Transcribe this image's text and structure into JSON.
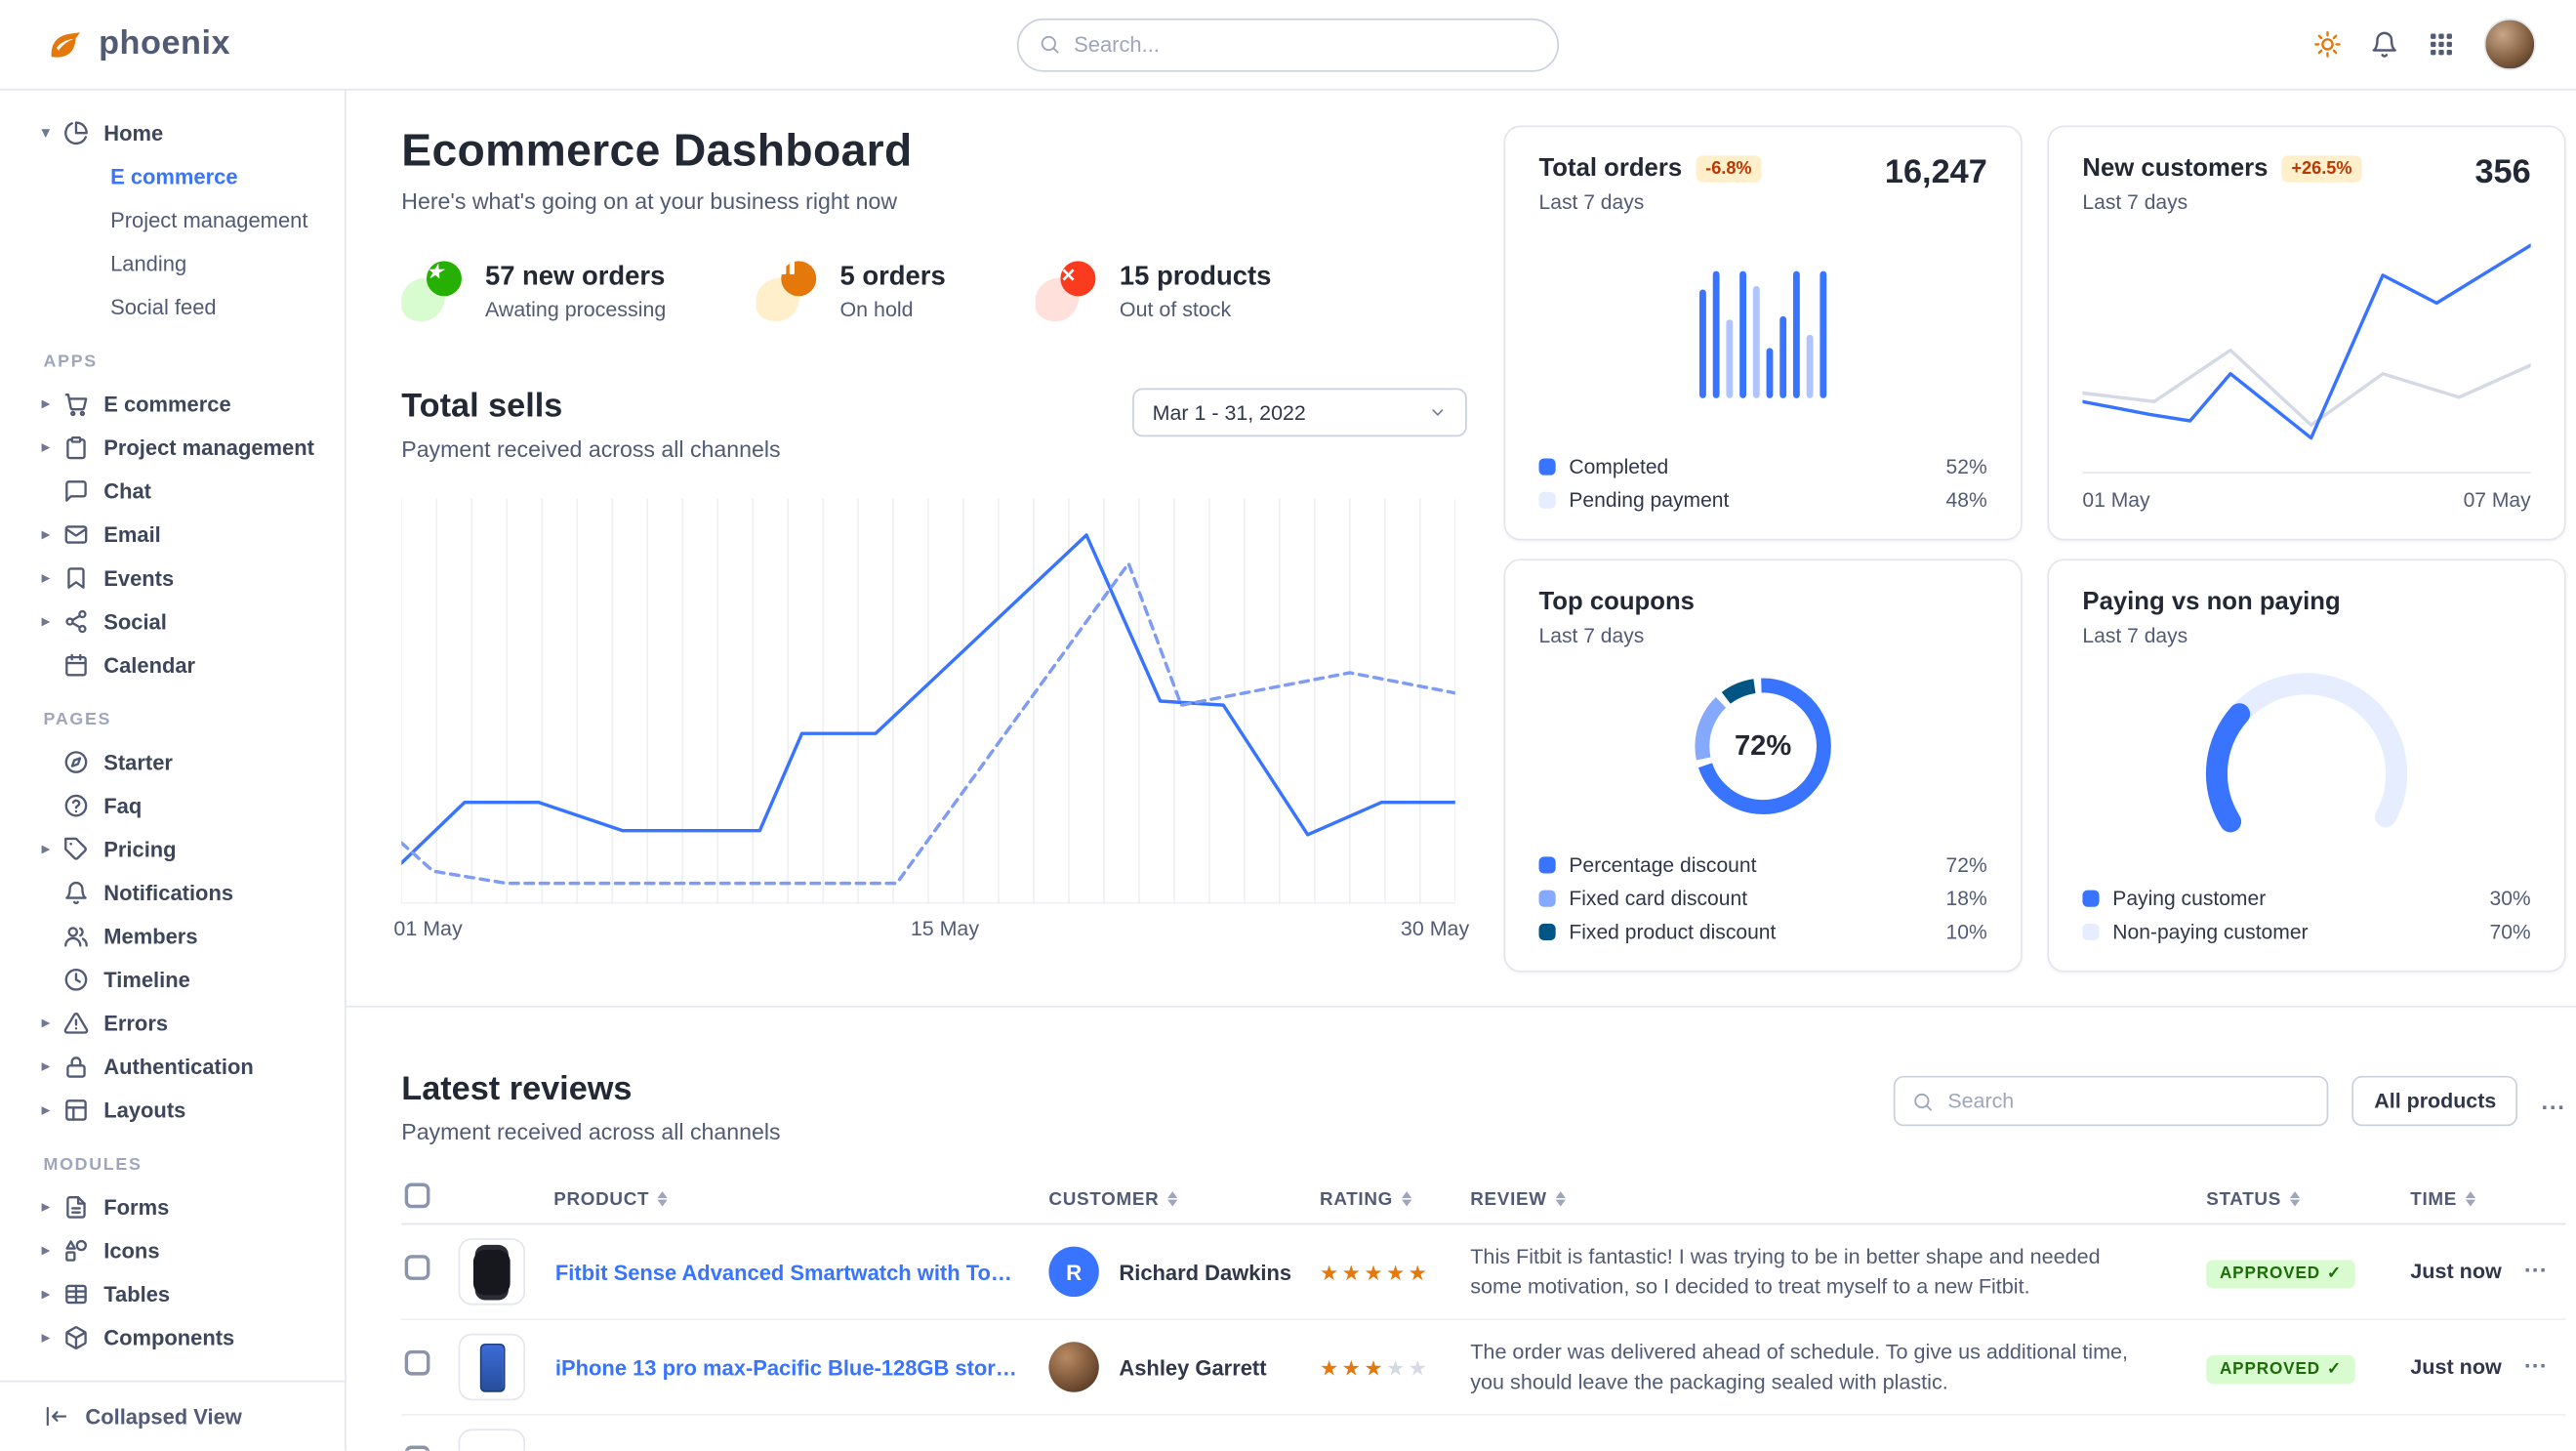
{
  "navbar": {
    "logo": "phoenix",
    "search_placeholder": "Search...",
    "right_icons": [
      {
        "name": "sun-icon"
      },
      {
        "name": "bell-icon"
      },
      {
        "name": "grid-icon"
      },
      {
        "name": "user-avatar"
      }
    ]
  },
  "sidebar": {
    "sections": [
      {
        "label": "",
        "items": [
          {
            "label": "Home",
            "icon": "pie",
            "caret": "down",
            "children": [
              {
                "label": "E commerce",
                "active": true
              },
              {
                "label": "Project management"
              },
              {
                "label": "Landing"
              },
              {
                "label": "Social feed"
              }
            ]
          }
        ]
      },
      {
        "label": "APPS",
        "items": [
          {
            "label": "E commerce",
            "icon": "cart",
            "caret": "right"
          },
          {
            "label": "Project management",
            "icon": "clipboard",
            "caret": "right"
          },
          {
            "label": "Chat",
            "icon": "chat"
          },
          {
            "label": "Email",
            "icon": "mail",
            "caret": "right"
          },
          {
            "label": "Events",
            "icon": "bookmark",
            "caret": "right"
          },
          {
            "label": "Social",
            "icon": "share",
            "caret": "right"
          },
          {
            "label": "Calendar",
            "icon": "calendar"
          }
        ]
      },
      {
        "label": "PAGES",
        "items": [
          {
            "label": "Starter",
            "icon": "compass"
          },
          {
            "label": "Faq",
            "icon": "help"
          },
          {
            "label": "Pricing",
            "icon": "tag",
            "caret": "right"
          },
          {
            "label": "Notifications",
            "icon": "bell"
          },
          {
            "label": "Members",
            "icon": "users"
          },
          {
            "label": "Timeline",
            "icon": "clock"
          },
          {
            "label": "Errors",
            "icon": "alert",
            "caret": "right"
          },
          {
            "label": "Authentication",
            "icon": "lock",
            "caret": "right"
          },
          {
            "label": "Layouts",
            "icon": "layout",
            "caret": "right"
          }
        ]
      },
      {
        "label": "MODULES",
        "items": [
          {
            "label": "Forms",
            "icon": "file",
            "caret": "right"
          },
          {
            "label": "Icons",
            "icon": "shapes",
            "caret": "right"
          },
          {
            "label": "Tables",
            "icon": "table",
            "caret": "right"
          },
          {
            "label": "Components",
            "icon": "box",
            "caret": "right"
          }
        ]
      }
    ],
    "footer": {
      "label": "Collapsed View",
      "icon": "collapse"
    }
  },
  "dashboard": {
    "title": "Ecommerce Dashboard",
    "subtitle": "Here's what's going on at your business right now",
    "stats": [
      {
        "value": "57 new orders",
        "sub": "Awating processing",
        "icon": "star",
        "color": "#25b003",
        "bg": "#d9fbd0"
      },
      {
        "value": "5 orders",
        "sub": "On hold",
        "icon": "pause",
        "color": "#e5780b",
        "bg": "#ffefca"
      },
      {
        "value": "15 products",
        "sub": "Out of stock",
        "icon": "x",
        "color": "#fa3b1d",
        "bg": "#ffe0db"
      }
    ]
  },
  "total_sells": {
    "title": "Total sells",
    "subtitle": "Payment received across all channels",
    "date_range": "Mar 1 - 31, 2022"
  },
  "cards": {
    "total_orders": {
      "title": "Total orders",
      "badge": "-6.8%",
      "badge_bg": "#ffefca",
      "badge_fg": "#bc3803",
      "period": "Last 7 days",
      "value": "16,247",
      "legend": [
        {
          "label": "Completed",
          "value": "52%",
          "color": "#3874ff"
        },
        {
          "label": "Pending payment",
          "value": "48%",
          "color": "#e5edff"
        }
      ]
    },
    "new_customers": {
      "title": "New customers",
      "badge": "+26.5%",
      "badge_bg": "#ffefca",
      "badge_fg": "#bc3803",
      "period": "Last 7 days",
      "value": "356",
      "x_labels": [
        "01 May",
        "07 May"
      ]
    },
    "top_coupons": {
      "title": "Top coupons",
      "period": "Last 7 days",
      "legend": [
        {
          "label": "Percentage discount",
          "value": "72%",
          "color": "#3874ff"
        },
        {
          "label": "Fixed card discount",
          "value": "18%",
          "color": "#85a9ff"
        },
        {
          "label": "Fixed product discount",
          "value": "10%",
          "color": "#005585"
        }
      ]
    },
    "paying": {
      "title": "Paying vs non paying",
      "period": "Last 7 days",
      "legend": [
        {
          "label": "Paying customer",
          "value": "30%",
          "color": "#3874ff"
        },
        {
          "label": "Non-paying customer",
          "value": "70%",
          "color": "#e5edff"
        }
      ]
    }
  },
  "reviews": {
    "title": "Latest reviews",
    "subtitle": "Payment received across all channels",
    "search_placeholder": "Search",
    "filter_button": "All products",
    "more_button": "...",
    "columns": [
      "PRODUCT",
      "CUSTOMER",
      "RATING",
      "REVIEW",
      "STATUS",
      "TIME"
    ],
    "status_colors": {
      "APPROVED": {
        "bg": "#d9fbd0",
        "fg": "#1c6c09"
      }
    },
    "rows": [
      {
        "thumb": "watch",
        "product": "Fitbit Sense Advanced Smartwatch with Tools fo...",
        "customer": "Richard Dawkins",
        "avatar": "R",
        "avatar_bg": "#3874ff",
        "rating": 5,
        "review": "This Fitbit is fantastic! I was trying to be in better shape and needed some motivation, so I decided to treat myself to a new Fitbit.",
        "status": "APPROVED",
        "time": "Just now"
      },
      {
        "thumb": "phone",
        "product": "iPhone 13 pro max-Pacific Blue-128GB storage",
        "customer": "Ashley Garrett",
        "avatar": "photo",
        "rating": 3,
        "review": "The order was delivered ahead of schedule. To give us additional time, you should leave the packaging sealed with plastic.",
        "status": "APPROVED",
        "time": "Just now"
      },
      {
        "thumb": "box",
        "partial": true,
        "product": "",
        "customer": "",
        "rating": 0,
        "review": "",
        "status": "",
        "time": ""
      }
    ]
  },
  "charts": {
    "total_sells": {
      "type": "line",
      "gridlines": 30,
      "x_labels": [
        "01 May",
        "15 May",
        "30 May"
      ],
      "series": [
        {
          "name": "Current period",
          "style": "solid",
          "color": "#3874ff",
          "points": [
            [
              0,
              90
            ],
            [
              6,
              75
            ],
            [
              13,
              75
            ],
            [
              21,
              82
            ],
            [
              34,
              82
            ],
            [
              38,
              58
            ],
            [
              45,
              58
            ],
            [
              65,
              9
            ],
            [
              72,
              50
            ],
            [
              78,
              51
            ],
            [
              86,
              83
            ],
            [
              93,
              75
            ],
            [
              100,
              75
            ]
          ]
        },
        {
          "name": "Previous period",
          "style": "dashed",
          "color": "#7e9bf5",
          "points": [
            [
              0,
              85
            ],
            [
              3,
              92
            ],
            [
              10,
              95
            ],
            [
              47,
              95
            ],
            [
              69,
              16
            ],
            [
              74,
              51
            ],
            [
              90,
              43
            ],
            [
              100,
              48
            ]
          ]
        }
      ]
    },
    "total_orders": {
      "type": "bar",
      "colors": {
        "solid": "#3874ff",
        "light": "#b0c5ff"
      },
      "bars": [
        {
          "v": 85,
          "light": false
        },
        {
          "v": 100,
          "light": false
        },
        {
          "v": 62,
          "light": true
        },
        {
          "v": 100,
          "light": false
        },
        {
          "v": 88,
          "light": true
        },
        {
          "v": 40,
          "light": false
        },
        {
          "v": 64,
          "light": false
        },
        {
          "v": 100,
          "light": false
        },
        {
          "v": 50,
          "light": true
        },
        {
          "v": 100,
          "light": false
        }
      ]
    },
    "new_customers": {
      "type": "line",
      "series": [
        {
          "name": "Previous",
          "style": "solid",
          "color": "#d3d9e5",
          "points": [
            [
              0,
              71
            ],
            [
              16,
              75
            ],
            [
              33,
              51
            ],
            [
              51,
              86
            ],
            [
              67,
              62
            ],
            [
              84,
              73
            ],
            [
              100,
              58
            ]
          ]
        },
        {
          "name": "Current",
          "style": "solid",
          "color": "#3874ff",
          "points": [
            [
              0,
              75
            ],
            [
              15,
              81
            ],
            [
              24,
              84
            ],
            [
              33,
              62
            ],
            [
              51,
              92
            ],
            [
              67,
              16
            ],
            [
              79,
              29
            ],
            [
              100,
              2
            ]
          ]
        }
      ]
    },
    "top_coupons": {
      "type": "donut",
      "center_label": "72%",
      "segments": [
        {
          "label": "Percentage discount",
          "value": 72,
          "color": "#3874ff"
        },
        {
          "label": "Fixed card discount",
          "value": 18,
          "color": "#85a9ff"
        },
        {
          "label": "Fixed product discount",
          "value": 10,
          "color": "#005585"
        }
      ]
    },
    "paying": {
      "type": "gauge",
      "arc_span_deg": 240,
      "segments": [
        {
          "label": "Paying customer",
          "value": 30,
          "color": "#3874ff"
        },
        {
          "label": "Non-paying customer",
          "value": 70,
          "color": "#e5edff"
        }
      ]
    }
  }
}
